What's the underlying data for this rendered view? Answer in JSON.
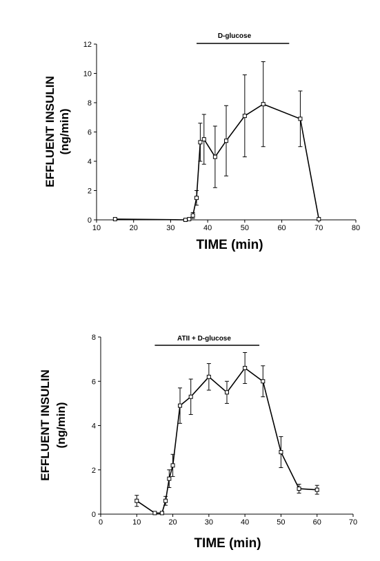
{
  "chart_data": [
    {
      "type": "line",
      "xlabel": "TIME (min)",
      "ylabel_line1": "EFFLUENT INSULIN",
      "ylabel_line2": "(ng/min)",
      "xlim": [
        10,
        80
      ],
      "ylim": [
        0,
        12
      ],
      "xticks": [
        10,
        20,
        30,
        40,
        50,
        60,
        70,
        80
      ],
      "yticks": [
        0,
        2,
        4,
        6,
        8,
        10,
        12
      ],
      "annotation": {
        "label": "D-glucose",
        "x_start": 37,
        "x_end": 62
      },
      "series": [
        {
          "points": [
            {
              "x": 15,
              "y": 0.05,
              "err": 0
            },
            {
              "x": 34,
              "y": 0.0,
              "err": 0
            },
            {
              "x": 35,
              "y": 0.05,
              "err": 0
            },
            {
              "x": 36,
              "y": 0.3,
              "err": 0.2
            },
            {
              "x": 37,
              "y": 1.5,
              "err": 0.5
            },
            {
              "x": 38,
              "y": 5.3,
              "err": 1.3
            },
            {
              "x": 39,
              "y": 5.5,
              "err": 1.7
            },
            {
              "x": 42,
              "y": 4.3,
              "err": 2.1
            },
            {
              "x": 45,
              "y": 5.4,
              "err": 2.4
            },
            {
              "x": 50,
              "y": 7.1,
              "err": 2.8
            },
            {
              "x": 55,
              "y": 7.9,
              "err": 2.9
            },
            {
              "x": 65,
              "y": 6.9,
              "err": 1.9
            },
            {
              "x": 70,
              "y": 0.05,
              "err": 0
            }
          ]
        }
      ]
    },
    {
      "type": "line",
      "xlabel": "TIME (min)",
      "ylabel_line1": "EFFLUENT INSULIN",
      "ylabel_line2": "(ng/min)",
      "xlim": [
        0,
        70
      ],
      "ylim": [
        0,
        8
      ],
      "xticks": [
        0,
        10,
        20,
        30,
        40,
        50,
        60,
        70
      ],
      "yticks": [
        0,
        2,
        4,
        6,
        8
      ],
      "annotation": {
        "label": "ATII + D-glucose",
        "x_start": 15,
        "x_end": 44
      },
      "series": [
        {
          "points": [
            {
              "x": 10,
              "y": 0.6,
              "err": 0.25
            },
            {
              "x": 15,
              "y": 0.05,
              "err": 0.05
            },
            {
              "x": 17,
              "y": 0.05,
              "err": 0.05
            },
            {
              "x": 18,
              "y": 0.6,
              "err": 0.2
            },
            {
              "x": 19,
              "y": 1.6,
              "err": 0.4
            },
            {
              "x": 20,
              "y": 2.2,
              "err": 0.5
            },
            {
              "x": 22,
              "y": 4.9,
              "err": 0.8
            },
            {
              "x": 25,
              "y": 5.3,
              "err": 0.8
            },
            {
              "x": 30,
              "y": 6.2,
              "err": 0.6
            },
            {
              "x": 35,
              "y": 5.5,
              "err": 0.5
            },
            {
              "x": 40,
              "y": 6.6,
              "err": 0.7
            },
            {
              "x": 45,
              "y": 6.0,
              "err": 0.7
            },
            {
              "x": 50,
              "y": 2.8,
              "err": 0.7
            },
            {
              "x": 55,
              "y": 1.15,
              "err": 0.2
            },
            {
              "x": 60,
              "y": 1.1,
              "err": 0.2
            }
          ]
        }
      ]
    }
  ]
}
